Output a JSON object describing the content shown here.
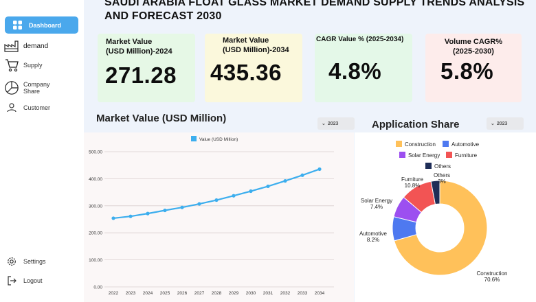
{
  "sidebar": {
    "items": [
      {
        "label": "Dashboard",
        "icon": "grid-icon"
      },
      {
        "label": "demand",
        "icon": "factory-icon"
      },
      {
        "label": "Supply",
        "icon": "cart-icon"
      },
      {
        "label": "Company Share",
        "line1": "Company",
        "line2": "Share",
        "icon": "pie-icon"
      },
      {
        "label": "Customer",
        "icon": "user-icon"
      },
      {
        "label": "Settings",
        "icon": "gear-icon"
      },
      {
        "label": "Logout",
        "icon": "logout-icon"
      }
    ]
  },
  "header": {
    "title": "SAUDI ARABIA FLOAT GLASS MARKET DEMAND SUPPLY TRENDS ANALYSIS AND FORECAST 2030"
  },
  "kpis": [
    {
      "label_line1": "Market Value",
      "label_line2": "(USD Million)-2024",
      "value": "271.28",
      "bg": "#e6f8e6"
    },
    {
      "label_line1": "Market Value",
      "label_line2": "(USD Million)-2034",
      "value": "435.36",
      "bg": "#fbf8dc"
    },
    {
      "label_line1": "CAGR  Value % (2025-2034)",
      "label_line2": "",
      "value": "4.8%",
      "bg": "#e4f8e8"
    },
    {
      "label_line1": "Volume CAGR%",
      "label_line2": "(2025-2030)",
      "value": "5.8%",
      "bg": "#fdeceb"
    }
  ],
  "line_section": {
    "title": "Market Value (USD Million)",
    "year_filter": "2023"
  },
  "donut_section": {
    "title": "Application Share",
    "year_filter": "2023"
  },
  "chart_data": [
    {
      "type": "line",
      "title": "Market Value (USD Million)",
      "legend": "Value (USD Million)",
      "x": [
        "2022",
        "2023",
        "2024",
        "2025",
        "2026",
        "2027",
        "2028",
        "2029",
        "2030",
        "2031",
        "2032",
        "2033",
        "2034"
      ],
      "values": [
        254,
        261,
        271.28,
        283,
        294,
        307,
        321,
        337,
        354,
        372,
        392,
        413,
        435.36
      ],
      "yticks": [
        "0.00",
        "100.00",
        "200.00",
        "300.00",
        "400.00",
        "500.00"
      ],
      "ylim": [
        0,
        500
      ],
      "color": "#3caeee"
    },
    {
      "type": "pie",
      "title": "Application Share",
      "slices": [
        {
          "name": "Construction",
          "value": 70.6,
          "label": "70.6%",
          "color": "#ffc15a"
        },
        {
          "name": "Automotive",
          "value": 8.2,
          "label": "8.2%",
          "color": "#4e79f0"
        },
        {
          "name": "Solar Energy",
          "value": 7.4,
          "label": "7.4%",
          "color": "#9c4ff0"
        },
        {
          "name": "Furniture",
          "value": 10.8,
          "label": "10.8%",
          "color": "#f25454"
        },
        {
          "name": "Others",
          "value": 3,
          "label": "3%",
          "color": "#1e2d57"
        }
      ]
    }
  ]
}
